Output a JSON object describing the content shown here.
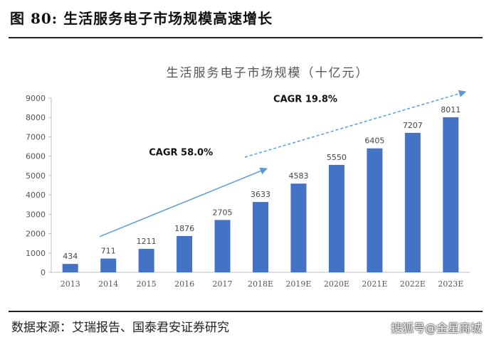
{
  "figure": {
    "title": "图 80: 生活服务电子市场规模高速增长",
    "source": "数据来源：艾瑞报告、国泰君安证券研究",
    "watermark": "搜狐号@金星商城"
  },
  "chart_data": {
    "type": "bar",
    "title": "生活服务电子市场规模（十亿元）",
    "xlabel": "",
    "ylabel": "",
    "categories": [
      "2013",
      "2014",
      "2015",
      "2016",
      "2017",
      "2018E",
      "2019E",
      "2020E",
      "2021E",
      "2022E",
      "2023E"
    ],
    "values": [
      434,
      711,
      1211,
      1876,
      2705,
      3633,
      4583,
      5550,
      6405,
      7207,
      8011
    ],
    "ylim": [
      0,
      9000
    ],
    "yticks": [
      0,
      1000,
      2000,
      3000,
      4000,
      5000,
      6000,
      7000,
      8000,
      9000
    ],
    "grid": false,
    "legend": "none",
    "bar_color": "#4472c4",
    "annotations": [
      {
        "text": "CAGR 58.0%",
        "style": "solid-arrow",
        "from": "2014",
        "to": "2018E",
        "color": "#5b9bd5"
      },
      {
        "text": "CAGR 19.8%",
        "style": "dashed-arrow",
        "from": "2018E",
        "to": "2023E",
        "color": "#5b9bd5"
      }
    ]
  }
}
